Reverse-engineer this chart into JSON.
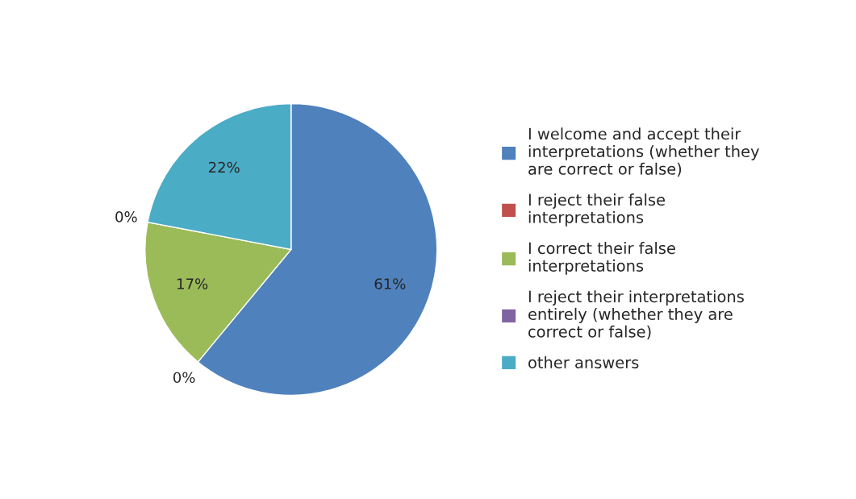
{
  "chart_data": {
    "type": "pie",
    "categories": [
      "I welcome and accept their interpretations (whether they are correct or false)",
      "I reject their false interpretations",
      "I correct their false interpretations",
      "I reject their interpretations entirely (whether they are correct or false)",
      "other answers"
    ],
    "values": [
      61,
      0,
      17,
      0,
      22
    ],
    "colors": [
      "#4f81bd",
      "#c0504d",
      "#9bbb59",
      "#8064a2",
      "#4bacc6"
    ],
    "value_labels": [
      "61%",
      "0%",
      "17%",
      "0%",
      "22%"
    ],
    "legend": "right"
  }
}
